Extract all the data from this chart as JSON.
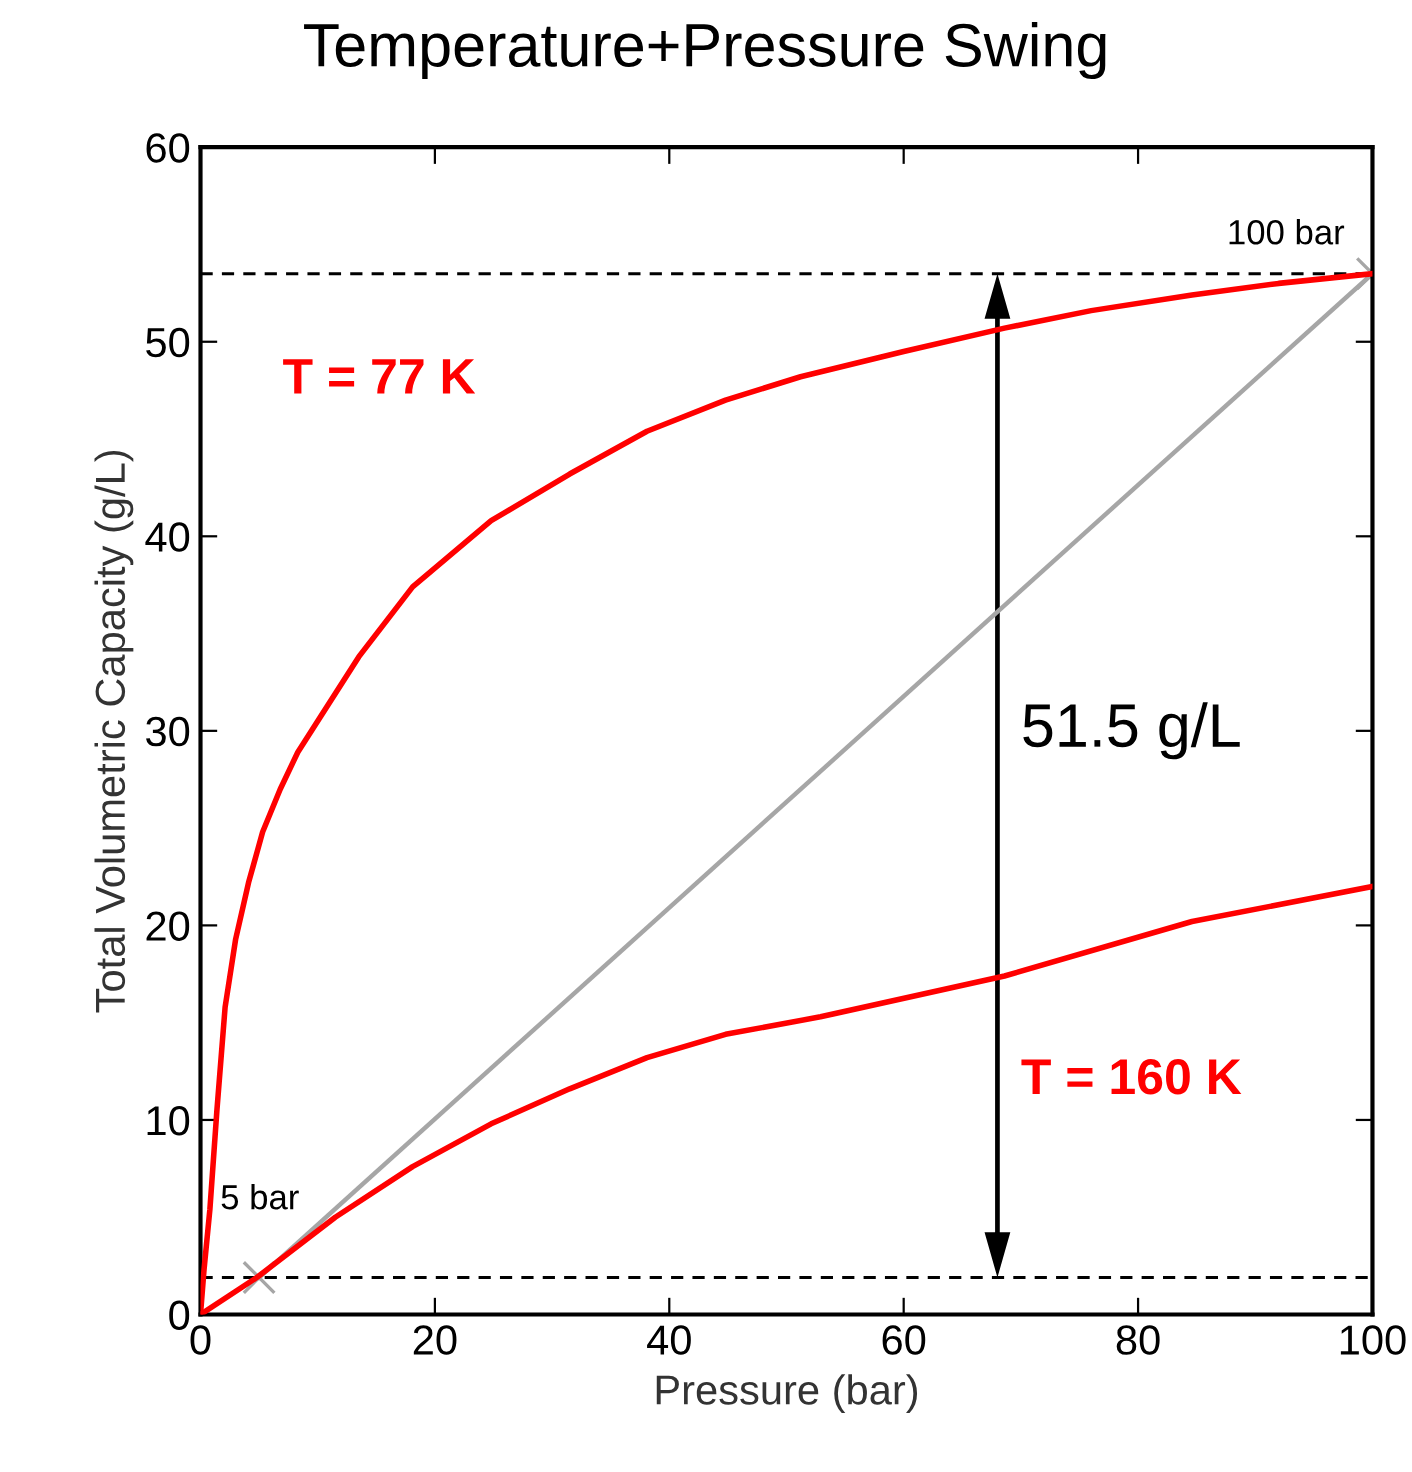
{
  "chart_data": {
    "type": "line",
    "title": "Temperature+Pressure Swing",
    "xlabel": "Pressure (bar)",
    "ylabel": "Total Volumetric Capacity (g/L)",
    "xlim": [
      0,
      100
    ],
    "xticks": [
      0,
      20,
      40,
      60,
      80,
      100
    ],
    "ylim": [
      0,
      60
    ],
    "yticks": [
      0,
      10,
      20,
      30,
      40,
      50,
      60
    ],
    "grid": false,
    "legend": false,
    "series": [
      {
        "name": "T = 77 K",
        "color": "#ff0000",
        "marker": "none",
        "line_style": "solid",
        "x": [
          0,
          0.3,
          0.8,
          1.4,
          2.1,
          3,
          4.1,
          5.3,
          6.8,
          8.3,
          10.1,
          13.5,
          18.1,
          24.8,
          31.5,
          38.1,
          44.8,
          51.2,
          60,
          68.6,
          76,
          84.6,
          92,
          100
        ],
        "values": [
          0,
          2.3,
          5.4,
          10.5,
          15.8,
          19.3,
          22.2,
          24.8,
          27,
          28.9,
          30.6,
          33.8,
          37.4,
          40.8,
          43.2,
          45.4,
          47,
          48.2,
          49.5,
          50.7,
          51.6,
          52.4,
          53,
          53.5
        ]
      },
      {
        "name": "T = 160 K",
        "color": "#ff0000",
        "marker": "none",
        "line_style": "solid",
        "x": [
          0,
          4.8,
          11.5,
          18.1,
          24.8,
          31.5,
          38.1,
          44.8,
          52.9,
          68.6,
          84.6,
          100
        ],
        "values": [
          0,
          1.9,
          5,
          7.6,
          9.8,
          11.6,
          13.2,
          14.4,
          15.3,
          17.4,
          20.2,
          22
        ]
      },
      {
        "color": "#a6a6a6",
        "marker": "cross",
        "line_style": "solid",
        "x": [
          5,
          100
        ],
        "values": [
          1.9,
          53.5
        ]
      }
    ],
    "ref_lines": [
      {
        "axis": "y",
        "value": 1.9,
        "line_style": "dashed",
        "color": "#000000"
      },
      {
        "axis": "y",
        "value": 53.5,
        "line_style": "dashed",
        "color": "#000000"
      }
    ],
    "annotations": [
      {
        "text": "5 bar",
        "x": 5,
        "y": 1.9
      },
      {
        "text": "100 bar",
        "x": 100,
        "y": 53.5
      },
      "51.5 g/L"
    ]
  }
}
